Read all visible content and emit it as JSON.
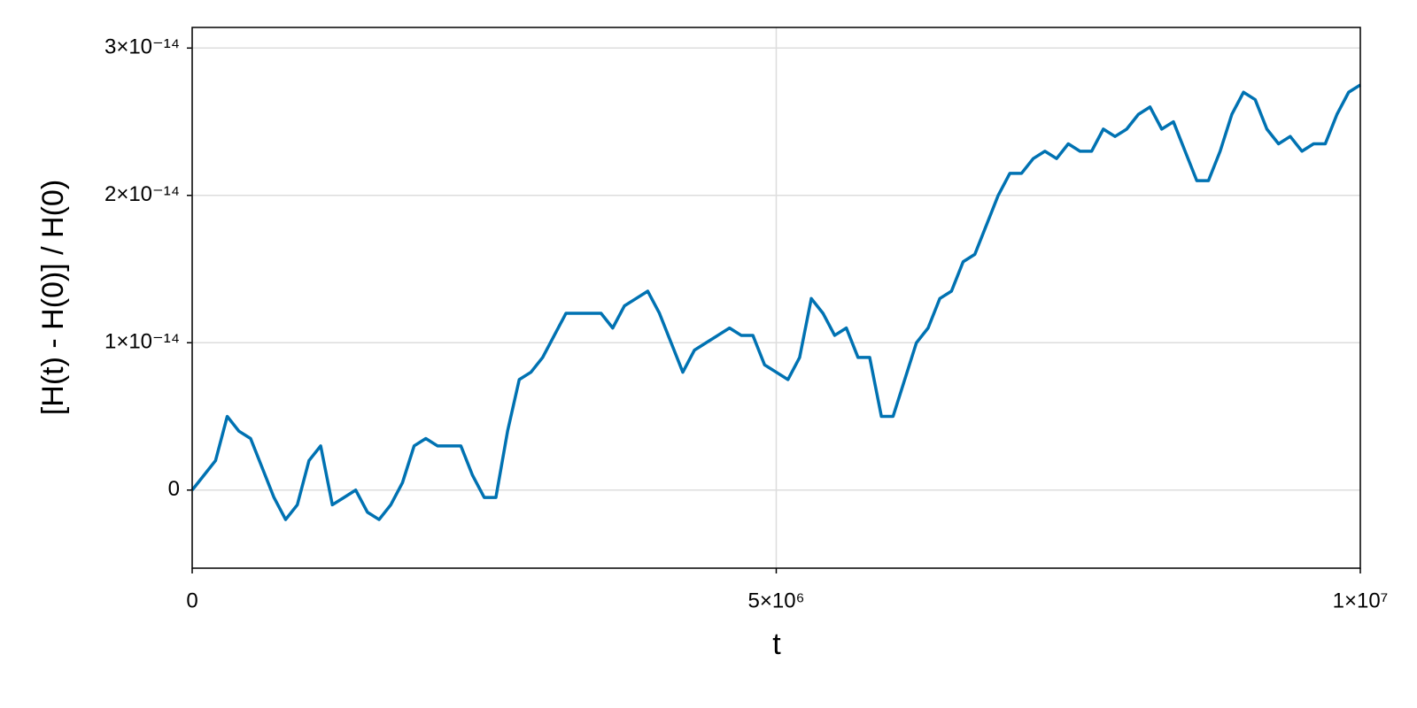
{
  "chart_data": {
    "type": "line",
    "xlabel": "t",
    "ylabel": "[H(t) - H(0)] / H(0)",
    "x": [
      0,
      100000,
      200000,
      300000,
      400000,
      500000,
      600000,
      700000,
      800000,
      900000,
      1000000,
      1100000,
      1200000,
      1300000,
      1400000,
      1500000,
      1600000,
      1700000,
      1800000,
      1900000,
      2000000,
      2100000,
      2200000,
      2300000,
      2400000,
      2500000,
      2600000,
      2700000,
      2800000,
      2900000,
      3000000,
      3100000,
      3200000,
      3300000,
      3400000,
      3500000,
      3600000,
      3700000,
      3800000,
      3900000,
      4000000,
      4100000,
      4200000,
      4300000,
      4400000,
      4500000,
      4600000,
      4700000,
      4800000,
      4900000,
      5000000,
      5100000,
      5200000,
      5300000,
      5400000,
      5500000,
      5600000,
      5700000,
      5800000,
      5900000,
      6000000,
      6100000,
      6200000,
      6300000,
      6400000,
      6500000,
      6600000,
      6700000,
      6800000,
      6900000,
      7000000,
      7100000,
      7200000,
      7300000,
      7400000,
      7500000,
      7600000,
      7700000,
      7800000,
      7900000,
      8000000,
      8100000,
      8200000,
      8300000,
      8400000,
      8500000,
      8600000,
      8700000,
      8800000,
      8900000,
      9000000,
      9100000,
      9200000,
      9300000,
      9400000,
      9500000,
      9600000,
      9700000,
      9800000,
      9900000,
      10000000
    ],
    "series": [
      {
        "color": "#0072b2",
        "values": [
          0,
          1e-15,
          2e-15,
          5e-15,
          4e-15,
          3.5e-15,
          1.5e-15,
          -5e-16,
          -2e-15,
          -1e-15,
          2e-15,
          3e-15,
          -1e-15,
          -5e-16,
          0,
          -1.5e-15,
          -2e-15,
          -1e-15,
          5e-16,
          3e-15,
          3.5e-15,
          3e-15,
          3e-15,
          3e-15,
          1e-15,
          -5e-16,
          -5e-16,
          4e-15,
          7.5e-15,
          8e-15,
          9e-15,
          1.05e-14,
          1.2e-14,
          1.2e-14,
          1.2e-14,
          1.2e-14,
          1.1e-14,
          1.25e-14,
          1.3e-14,
          1.35e-14,
          1.2e-14,
          1e-14,
          8e-15,
          9.5e-15,
          1e-14,
          1.05e-14,
          1.1e-14,
          1.05e-14,
          1.05e-14,
          8.5e-15,
          8e-15,
          7.5e-15,
          9e-15,
          1.3e-14,
          1.2e-14,
          1.05e-14,
          1.1e-14,
          9e-15,
          9e-15,
          5e-15,
          5e-15,
          7.5e-15,
          1e-14,
          1.1e-14,
          1.3e-14,
          1.35e-14,
          1.55e-14,
          1.6e-14,
          1.8e-14,
          2e-14,
          2.15e-14,
          2.15e-14,
          2.25e-14,
          2.3e-14,
          2.25e-14,
          2.35e-14,
          2.3e-14,
          2.3e-14,
          2.45e-14,
          2.4e-14,
          2.45e-14,
          2.55e-14,
          2.6e-14,
          2.45e-14,
          2.5e-14,
          2.3e-14,
          2.1e-14,
          2.1e-14,
          2.3e-14,
          2.55e-14,
          2.7e-14,
          2.65e-14,
          2.45e-14,
          2.35e-14,
          2.4e-14,
          2.3e-14,
          2.35e-14,
          2.35e-14,
          2.55e-14,
          2.7e-14,
          2.75e-14
        ]
      }
    ],
    "xlim": [
      0,
      10000000
    ],
    "xticks": [
      0,
      {
        "value": 5000000,
        "label": "5×10⁶"
      },
      {
        "value": 10000000,
        "label": "1×10⁷"
      }
    ],
    "ylim": [
      -5.3e-15,
      3.14e-14
    ],
    "yticks": [
      0,
      {
        "value": 1e-14,
        "label": "1×10⁻¹⁴"
      },
      {
        "value": 2e-14,
        "label": "2×10⁻¹⁴"
      },
      {
        "value": 3e-14,
        "label": "3×10⁻¹⁴"
      }
    ],
    "grid": true
  }
}
